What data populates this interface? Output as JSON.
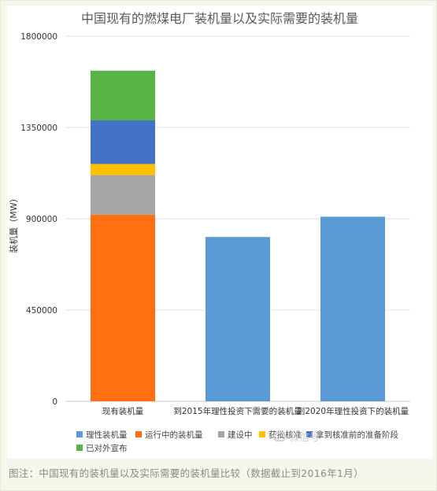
{
  "chart_data": {
    "type": "bar",
    "title": "中国现有的燃煤电厂装机量以及实际需要的装机量",
    "ylabel": "装机量（MW）",
    "xlabel": "",
    "ylim": [
      0,
      1800000
    ],
    "yticks": [
      0,
      450000,
      900000,
      1350000,
      1800000
    ],
    "yticklabels": [
      "0",
      "450000",
      "900000",
      "1350000",
      "1800000"
    ],
    "categories": [
      "现有装机量",
      "到2015年理性投资下需要的装机量",
      "到2020年理性投资下的装机量"
    ],
    "stacked": true,
    "grid": true,
    "legend_position": "bottom",
    "series": [
      {
        "name": "理性装机量",
        "color": "#5b9bd5",
        "values": [
          0,
          810000,
          910000
        ]
      },
      {
        "name": "运行中的装机量",
        "color": "#ff7010",
        "values": [
          920000,
          0,
          0
        ]
      },
      {
        "name": "建设中",
        "color": "#a5a5a5",
        "values": [
          195000,
          0,
          0
        ]
      },
      {
        "name": "获批核准",
        "color": "#ffc000",
        "values": [
          55000,
          0,
          0
        ]
      },
      {
        "name": "拿到核准前的准备阶段",
        "color": "#4472c4",
        "values": [
          215000,
          0,
          0
        ]
      },
      {
        "name": "已对外宣布",
        "color": "#58b446",
        "values": [
          245000,
          0,
          0
        ]
      }
    ]
  },
  "watermark_text": "微信号",
  "caption": "图注：中国现有的装机量以及实际需要的装机量比较（数据截止到2016年1月）"
}
